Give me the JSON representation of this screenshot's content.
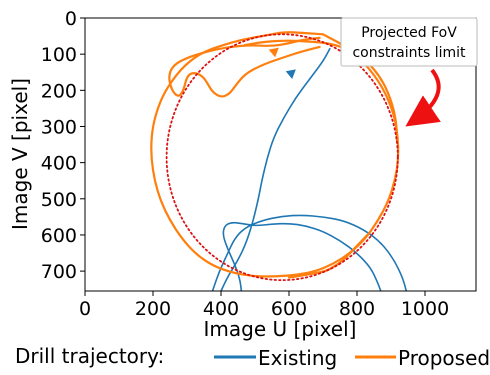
{
  "chart_data": {
    "type": "line",
    "title": "",
    "xlabel": "Image U [pixel]",
    "ylabel": "Image V [pixel]",
    "xlim": [
      0,
      1150
    ],
    "ylim": [
      0,
      755
    ],
    "y_inverted": true,
    "xticks": [
      0,
      200,
      400,
      600,
      800,
      1000
    ],
    "yticks": [
      0,
      100,
      200,
      300,
      400,
      500,
      600,
      700
    ],
    "grid": false,
    "legend": {
      "title": "Drill trajectory:",
      "placement": "bottom"
    },
    "series": [
      {
        "name": "Existing",
        "color": "#1f77b4",
        "segments": [
          [
            [
              720,
              85
            ],
            [
              700,
              120
            ],
            [
              660,
              170
            ],
            [
              620,
              220
            ],
            [
              585,
              275
            ],
            [
              555,
              330
            ],
            [
              535,
              390
            ],
            [
              520,
              450
            ],
            [
              510,
              500
            ],
            [
              495,
              560
            ],
            [
              475,
              620
            ],
            [
              450,
              670
            ],
            [
              420,
              715
            ],
            [
              400,
              755
            ]
          ],
          [
            [
              375,
              755
            ],
            [
              395,
              700
            ],
            [
              420,
              650
            ],
            [
              440,
              610
            ],
            [
              470,
              580
            ],
            [
              520,
              560
            ],
            [
              580,
              548
            ],
            [
              640,
              545
            ],
            [
              700,
              550
            ],
            [
              760,
              560
            ],
            [
              820,
              585
            ],
            [
              870,
              620
            ],
            [
              910,
              670
            ],
            [
              935,
              720
            ],
            [
              945,
              755
            ]
          ],
          [
            [
              460,
              755
            ],
            [
              455,
              720
            ],
            [
              440,
              680
            ],
            [
              420,
              640
            ],
            [
              405,
              600
            ],
            [
              410,
              575
            ],
            [
              430,
              565
            ],
            [
              460,
              568
            ],
            [
              500,
              575
            ],
            [
              550,
              570
            ],
            [
              600,
              568
            ],
            [
              650,
              575
            ],
            [
              700,
              590
            ],
            [
              750,
              615
            ],
            [
              800,
              650
            ],
            [
              840,
              690
            ],
            [
              860,
              730
            ],
            [
              870,
              755
            ]
          ]
        ]
      },
      {
        "name": "Proposed",
        "color": "#ff7f0e",
        "segments": [
          [
            [
              700,
              45
            ],
            [
              650,
              42
            ],
            [
              590,
              38
            ],
            [
              520,
              50
            ],
            [
              460,
              60
            ],
            [
              405,
              75
            ],
            [
              345,
              95
            ],
            [
              300,
              125
            ],
            [
              262,
              165
            ],
            [
              228,
              215
            ],
            [
              205,
              275
            ],
            [
              195,
              330
            ],
            [
              195,
              390
            ],
            [
              205,
              450
            ],
            [
              222,
              505
            ],
            [
              250,
              560
            ],
            [
              285,
              610
            ],
            [
              325,
              652
            ],
            [
              375,
              685
            ],
            [
              435,
              705
            ],
            [
              500,
              715
            ],
            [
              565,
              715
            ],
            [
              625,
              710
            ],
            [
              680,
              700
            ],
            [
              730,
              680
            ],
            [
              780,
              650
            ],
            [
              825,
              610
            ],
            [
              862,
              560
            ],
            [
              893,
              505
            ],
            [
              913,
              445
            ],
            [
              922,
              385
            ],
            [
              920,
              325
            ],
            [
              908,
              265
            ],
            [
              885,
              210
            ],
            [
              853,
              160
            ],
            [
              812,
              115
            ],
            [
              765,
              78
            ],
            [
              720,
              55
            ],
            [
              700,
              45
            ]
          ],
          [
            [
              690,
              80
            ],
            [
              640,
              92
            ],
            [
              580,
              110
            ],
            [
              520,
              130
            ],
            [
              470,
              155
            ],
            [
              440,
              190
            ],
            [
              425,
              210
            ],
            [
              400,
              220
            ],
            [
              375,
              205
            ],
            [
              360,
              180
            ],
            [
              345,
              160
            ],
            [
              320,
              150
            ],
            [
              300,
              160
            ],
            [
              290,
              200
            ],
            [
              275,
              220
            ],
            [
              255,
              200
            ],
            [
              245,
              160
            ],
            [
              260,
              130
            ],
            [
              300,
              110
            ],
            [
              350,
              95
            ],
            [
              420,
              80
            ],
            [
              490,
              75
            ],
            [
              550,
              78
            ],
            [
              600,
              70
            ],
            [
              640,
              60
            ],
            [
              690,
              55
            ]
          ],
          [
            [
              830,
              600
            ],
            [
              810,
              620
            ],
            [
              790,
              640
            ],
            [
              770,
              660
            ],
            [
              745,
              680
            ],
            [
              710,
              700
            ],
            [
              680,
              705
            ],
            [
              640,
              712
            ],
            [
              600,
              718
            ]
          ],
          [
            [
              470,
              75
            ],
            [
              530,
              65
            ],
            [
              600,
              62
            ],
            [
              660,
              65
            ],
            [
              720,
              70
            ],
            [
              780,
              88
            ],
            [
              830,
              120
            ],
            [
              870,
              165
            ],
            [
              898,
              220
            ],
            [
              915,
              280
            ],
            [
              918,
              340
            ]
          ]
        ]
      }
    ],
    "arrows_on_series": [
      {
        "series": "Existing",
        "at": [
          610,
          150
        ],
        "direction": "toward-upper-right"
      },
      {
        "series": "Proposed",
        "at": [
          560,
          90
        ],
        "direction": "toward-upper-right"
      }
    ],
    "reference_circle": {
      "label": "Projected FoV constraints limit",
      "center": [
        580,
        385
      ],
      "radius": 340,
      "color": "#dd1111",
      "style": "dotted"
    },
    "annotation": {
      "lines": [
        "Projected FoV",
        "constraints limit"
      ],
      "arrow_color": "#ee1111"
    }
  }
}
